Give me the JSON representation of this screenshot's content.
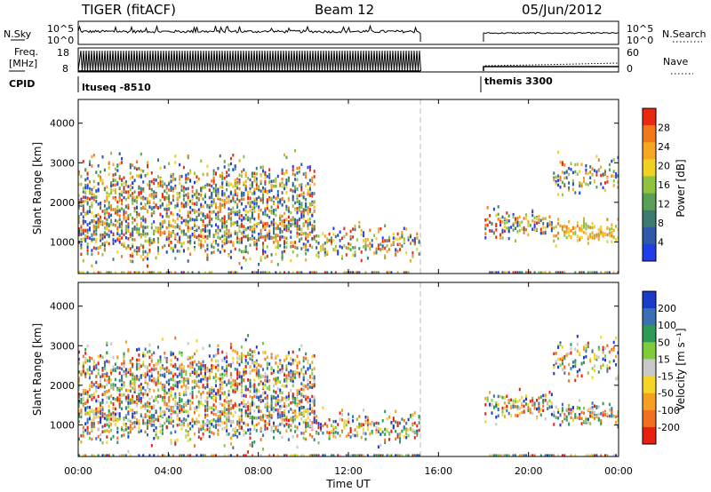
{
  "header": {
    "left_title": "TIGER (fitACF)",
    "beam": "Beam 12",
    "date": "05/Jun/2012"
  },
  "top_panels": {
    "noise_left_label": "N.Sky",
    "noise_right_label": "N.Search",
    "noise_left_ticks": [
      "10^5",
      "10^0"
    ],
    "noise_right_ticks": [
      "10^5",
      "10^0"
    ],
    "freq_label_1": "Freq.",
    "freq_label_2": "[MHz]",
    "freq_ticks": [
      "18",
      "8"
    ],
    "nave_label": "Nave",
    "nave_ticks": [
      "60",
      "0"
    ],
    "cpid_label": "CPID",
    "cpid_segments": [
      "ltuseq -8510",
      "themis 3300"
    ]
  },
  "chart_data": [
    {
      "type": "heatmap",
      "name": "power",
      "ylabel": "Slant Range [km]",
      "ylim": [
        200,
        4600
      ],
      "yticks": [
        "1000",
        "2000",
        "3000",
        "4000"
      ],
      "colorbar": {
        "label": "Power [dB]",
        "range": [
          0,
          30
        ],
        "ticks": [
          "4",
          "8",
          "12",
          "16",
          "20",
          "24",
          "28"
        ],
        "colors": [
          "#1f3fe6",
          "#2e5aa8",
          "#3c7b6f",
          "#5a9f55",
          "#8fc23f",
          "#f0d020",
          "#f5a623",
          "#f07818",
          "#ea2a10"
        ]
      }
    },
    {
      "type": "heatmap",
      "name": "velocity",
      "ylabel": "Slant Range [km]",
      "ylim": [
        200,
        4600
      ],
      "yticks": [
        "1000",
        "2000",
        "3000",
        "4000"
      ],
      "colorbar": {
        "label": "Velocity [m s⁻¹]",
        "range": [
          -250,
          250
        ],
        "ticks": [
          "200",
          "100",
          "50",
          "15",
          "-15",
          "-50",
          "-100",
          "-200"
        ],
        "colors": [
          "#1a3ac8",
          "#3a6fb4",
          "#2e9a55",
          "#7ecb3c",
          "#c8c8c8",
          "#f3d629",
          "#f5a020",
          "#f07020",
          "#e82010"
        ]
      }
    }
  ],
  "x_axis": {
    "label": "Time UT",
    "ticks": [
      "00:00",
      "04:00",
      "08:00",
      "12:00",
      "16:00",
      "20:00",
      "00:00"
    ],
    "range_hours": [
      0,
      24
    ]
  },
  "data_gap_hours": [
    15.2,
    18.0
  ]
}
